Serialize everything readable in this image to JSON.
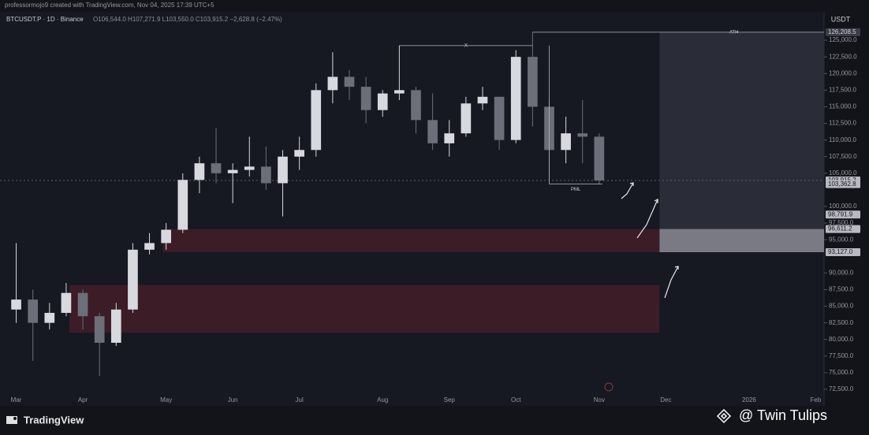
{
  "header": {
    "credit": "professormojo9 created with TradingView.com, Nov 04, 2025 17:39 UTC+5"
  },
  "chart_data": {
    "type": "candlestick",
    "symbol": "BTCUSDT.P · 1D · Binance",
    "ohlc_text": "O106,544.0 H107,271.9 L103,550.0 C103,915.2 −2,628.8 (−2.47%)",
    "currency": "USDT",
    "categories": [
      "Mar",
      null,
      null,
      null,
      "Apr",
      null,
      null,
      null,
      null,
      "May",
      null,
      null,
      null,
      "Jun",
      null,
      null,
      null,
      "Jul",
      null,
      null,
      null,
      null,
      "Aug",
      null,
      null,
      null,
      "Sep",
      null,
      null,
      null,
      "Oct",
      null,
      null,
      null,
      null,
      "Nov",
      null,
      null,
      null,
      "Dec",
      null,
      null,
      null,
      null,
      "2026",
      null,
      null,
      null,
      "Feb"
    ],
    "open": [
      84500,
      86000,
      82500,
      84000,
      87000,
      83500,
      79500,
      84500,
      93500,
      94500,
      96500,
      104000,
      106500,
      105000,
      105500,
      106000,
      103500,
      107500,
      108500,
      117500,
      119500,
      118000,
      114500,
      117000,
      117500,
      113000,
      109500,
      111000,
      115500,
      116500,
      110000,
      122500,
      115000,
      108500,
      111000,
      110500,
      null,
      null,
      null,
      null,
      null,
      null,
      null,
      null,
      null,
      null,
      null,
      null,
      null
    ],
    "high": [
      94500,
      87500,
      85500,
      88500,
      87500,
      84000,
      85500,
      94500,
      96000,
      97500,
      105000,
      107500,
      111800,
      106500,
      110500,
      109000,
      108500,
      110500,
      118500,
      123200,
      120500,
      119500,
      117500,
      124200,
      118000,
      117000,
      113000,
      116500,
      118000,
      116500,
      123500,
      126208.5,
      116000,
      113500,
      116000,
      111000,
      null,
      null,
      null,
      null,
      null,
      null,
      null,
      null,
      null,
      null,
      null,
      null,
      null
    ],
    "low": [
      82500,
      76800,
      81500,
      83500,
      81500,
      74500,
      79000,
      84000,
      92800,
      93500,
      96000,
      102000,
      103500,
      100500,
      104500,
      102500,
      98500,
      105500,
      107500,
      115500,
      116000,
      112500,
      113500,
      116000,
      111000,
      108500,
      107500,
      110500,
      114500,
      108500,
      109500,
      112000,
      104000,
      106500,
      106500,
      103362.8,
      null,
      null,
      null,
      null,
      null,
      null,
      null,
      null,
      null,
      null,
      null,
      null,
      null
    ],
    "close": [
      86000,
      82500,
      84000,
      87000,
      83500,
      79500,
      84500,
      93500,
      94500,
      96500,
      104000,
      106500,
      105000,
      105500,
      106000,
      103500,
      107500,
      108500,
      117500,
      119500,
      118000,
      114500,
      117000,
      117500,
      113000,
      109500,
      111000,
      115500,
      116500,
      110000,
      122500,
      115000,
      108500,
      111000,
      110500,
      103915.2,
      null,
      null,
      null,
      null,
      null,
      null,
      null,
      null,
      null,
      null,
      null,
      null,
      null
    ],
    "up_color": "#d8d9de",
    "down_color": "#6c6f7a",
    "ylim": [
      71200,
      127500
    ],
    "yticks": [
      {
        "value": 125000,
        "label": "125,000.0"
      },
      {
        "value": 122500,
        "label": "122,500.0"
      },
      {
        "value": 120000,
        "label": "120,000.0"
      },
      {
        "value": 117500,
        "label": "117,500.0"
      },
      {
        "value": 115000,
        "label": "115,000.0"
      },
      {
        "value": 112500,
        "label": "112,500.0"
      },
      {
        "value": 110000,
        "label": "110,000.0"
      },
      {
        "value": 107500,
        "label": "107,500.0"
      },
      {
        "value": 105000,
        "label": "105,000.0"
      },
      {
        "value": 100000,
        "label": "100,000.0"
      },
      {
        "value": 97500,
        "label": "97,500.0"
      },
      {
        "value": 95000,
        "label": "95,000.0"
      },
      {
        "value": 90000,
        "label": "90,000.0"
      },
      {
        "value": 87500,
        "label": "87,500.0"
      },
      {
        "value": 85000,
        "label": "85,000.0"
      },
      {
        "value": 82500,
        "label": "82,500.0"
      },
      {
        "value": 80000,
        "label": "80,000.0"
      },
      {
        "value": 77500,
        "label": "77,500.0"
      },
      {
        "value": 75000,
        "label": "75,000.0"
      },
      {
        "value": 72500,
        "label": "72,500.0"
      }
    ],
    "price_tags": [
      {
        "value": 126208.5,
        "label": "126,208.5"
      },
      {
        "value": 103915.2,
        "label": "103,915.2"
      },
      {
        "value": 103362.8,
        "label": "103,362.8"
      },
      {
        "value": 98791.9,
        "label": "98,791.9"
      },
      {
        "value": 96611.2,
        "label": "96,611.2"
      },
      {
        "value": 93127,
        "label": "93,127.0"
      }
    ],
    "zones": [
      {
        "from": 93127,
        "to": 96611.2
      },
      {
        "from": 81000,
        "to": 88200
      }
    ],
    "zone_color": "#4a1e28",
    "annotations": [
      {
        "text": "X",
        "value": 124200
      },
      {
        "text": "ATH",
        "value": 126208.5
      },
      {
        "text": "PML",
        "value": 103362.8
      }
    ]
  },
  "footer": {
    "brand": "TradingView",
    "watermark": "@ Twin Tulips"
  }
}
